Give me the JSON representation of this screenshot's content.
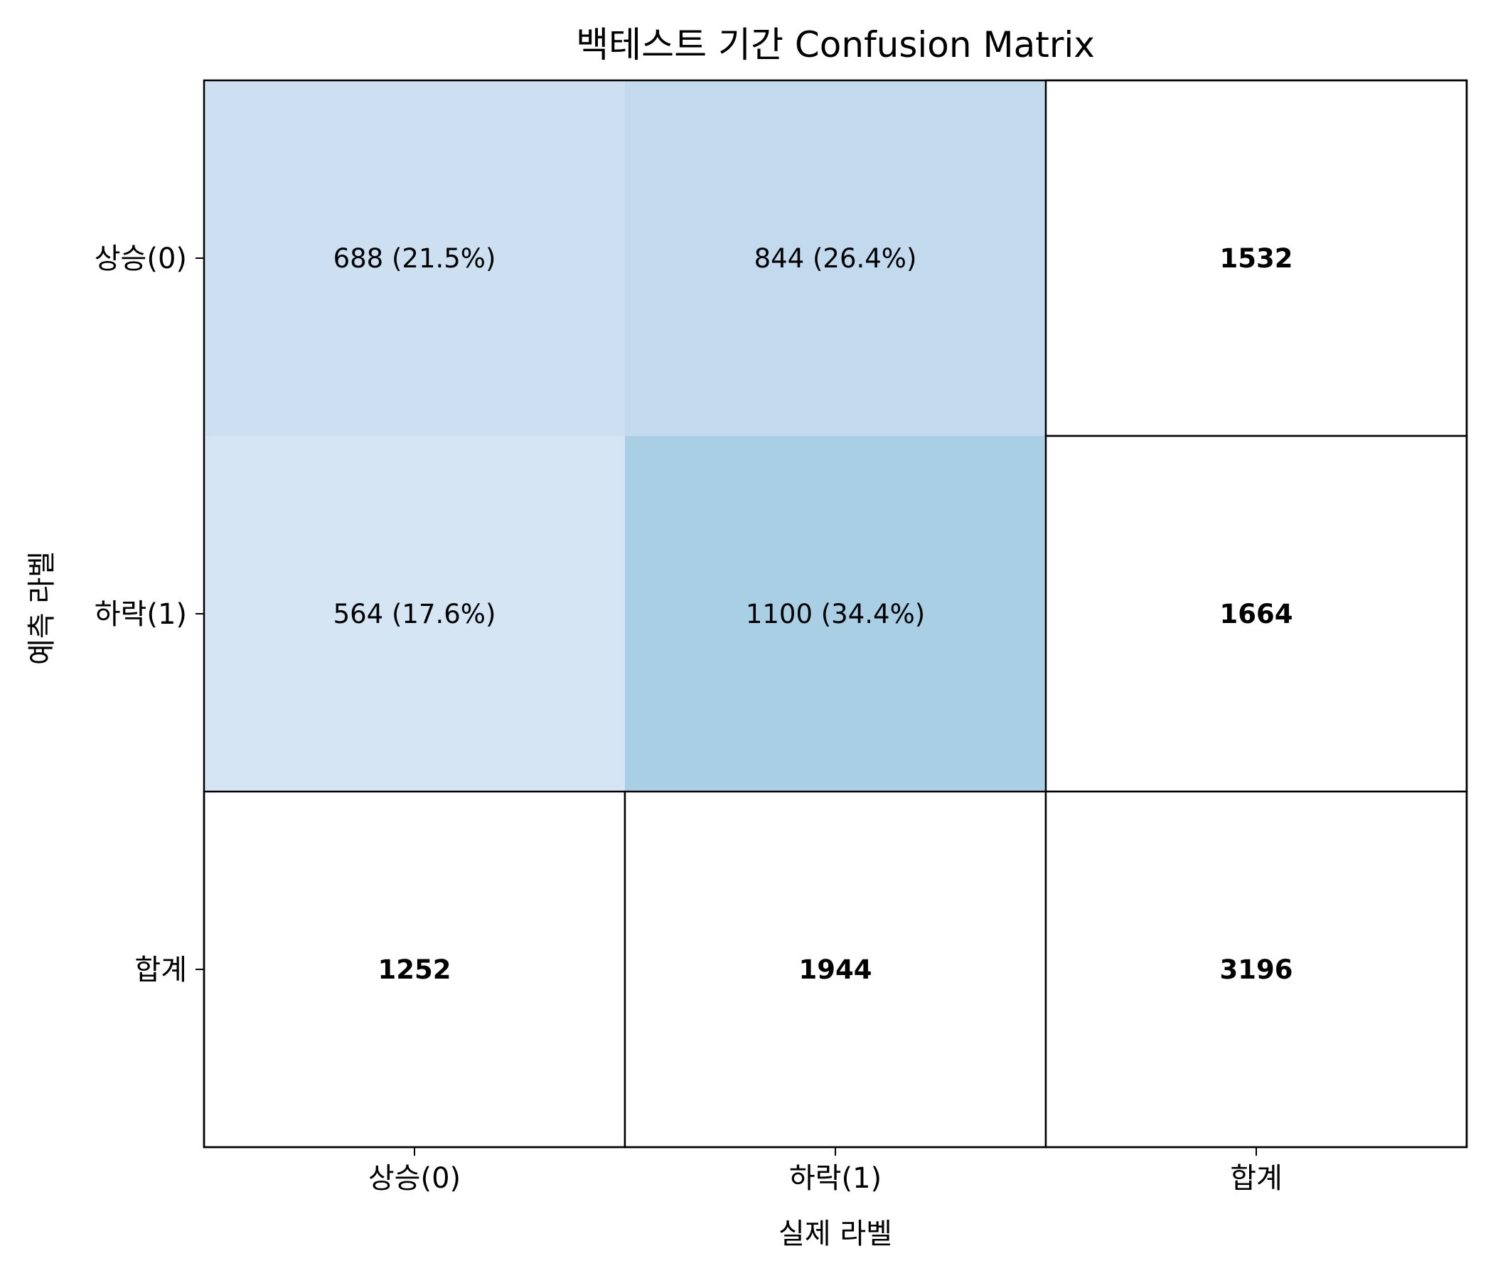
{
  "chart_data": {
    "type": "heatmap",
    "title": "백테스트 기간 Confusion Matrix",
    "xlabel": "실제 라벨",
    "ylabel": "예측 라벨",
    "x_categories": [
      "상승(0)",
      "하락(1)",
      "합계"
    ],
    "y_categories": [
      "상승(0)",
      "하락(1)",
      "합계"
    ],
    "matrix": [
      [
        688,
        844
      ],
      [
        564,
        1100
      ]
    ],
    "cell_labels": [
      [
        "688 (21.5%)",
        "844 (26.4%)"
      ],
      [
        "564 (17.6%)",
        "1100 (34.4%)"
      ]
    ],
    "row_totals": [
      1532,
      1664
    ],
    "col_totals": [
      1252,
      1944
    ],
    "grand_total": 3196,
    "colormap": "Blues",
    "colors": {
      "low": "#f7fbff",
      "high": "#08306b",
      "total_cells": "#ffffff",
      "border": "#000000"
    },
    "grid": false
  }
}
